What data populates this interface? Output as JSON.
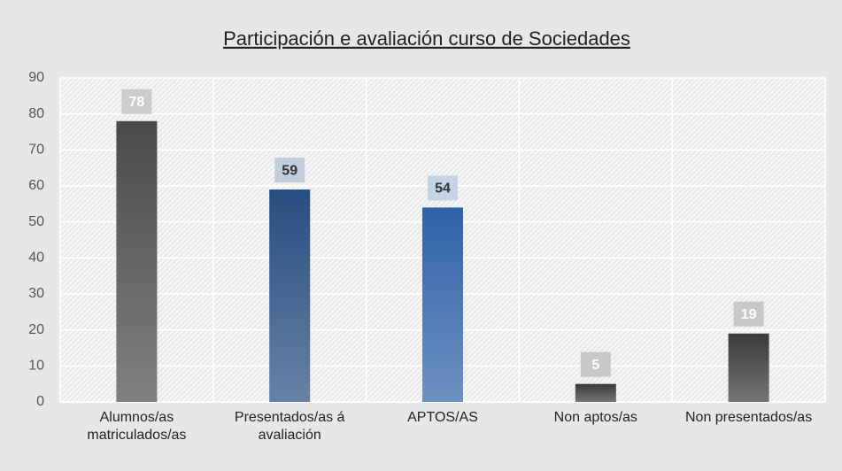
{
  "chart_data": {
    "type": "bar",
    "title": "Participación e avaliación curso de Sociedades",
    "categories": [
      "Alumnos/as matriculados/as",
      "Presentados/as á avaliación",
      "APTOS/AS",
      "Non aptos/as",
      "Non presentados/as"
    ],
    "values": [
      78,
      59,
      54,
      5,
      19
    ],
    "colors": [
      "#4a4a4a",
      "#264d80",
      "#2f62a8",
      "#3a3a3a",
      "#3a3a3a"
    ],
    "ylim": [
      0,
      90
    ],
    "yticks": [
      0,
      10,
      20,
      30,
      40,
      50,
      60,
      70,
      80,
      90
    ],
    "grid": true
  }
}
